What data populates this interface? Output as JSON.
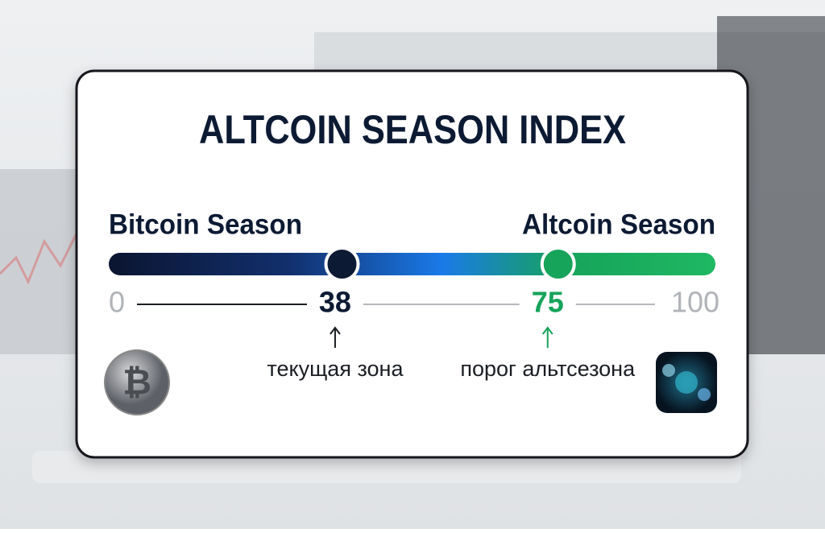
{
  "title": "ALTCOIN SEASON INDEX",
  "scale": {
    "left_label": "Bitcoin Season",
    "right_label": "Altcoin Season",
    "min": 0,
    "max": 100,
    "current": 38,
    "current_note": "текущая зона",
    "threshold": 75,
    "threshold_note": "порог альтсезона"
  }
}
